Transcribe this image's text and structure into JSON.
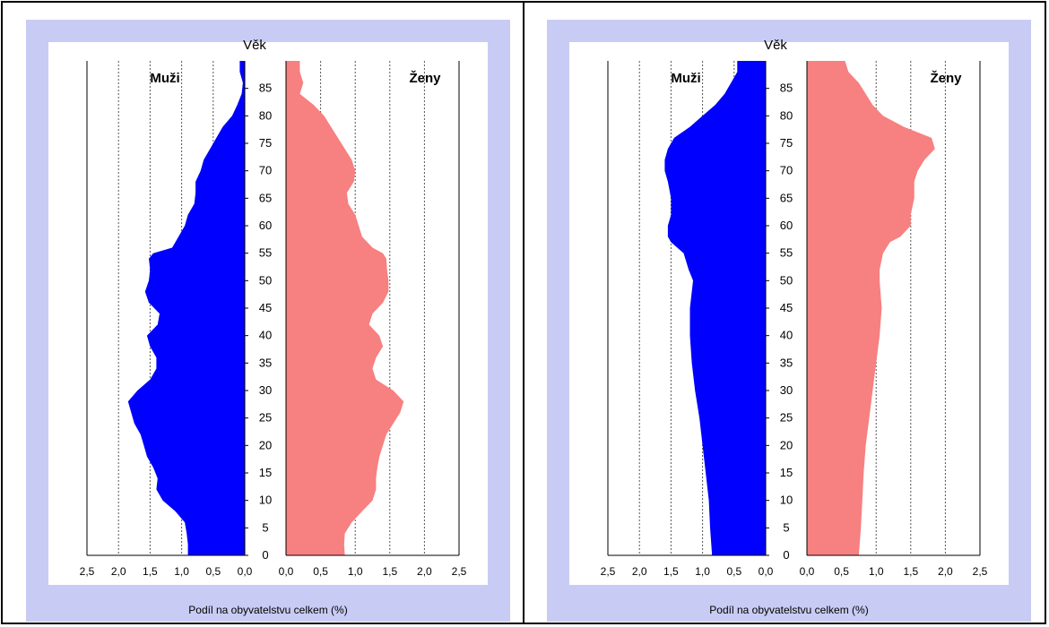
{
  "colors": {
    "male": "#0000ff",
    "female": "#f78080",
    "panel_bg": "#c8ccf4",
    "plot_bg": "#ffffff"
  },
  "chart_data": [
    {
      "type": "area",
      "title": "Věk",
      "xlabel": "Podíl na obyvatelstvu celkem (%)",
      "ylabel": "Věk",
      "left_label": "Muži",
      "right_label": "Ženy",
      "xlim": [
        0,
        2.5
      ],
      "ylim": [
        0,
        90
      ],
      "x_ticks": [
        "2,5",
        "2,0",
        "1,5",
        "1,0",
        "0,5",
        "0,0",
        "0,0",
        "0,5",
        "1,0",
        "1,5",
        "2,0",
        "2,5"
      ],
      "y_ticks": [
        "0",
        "5",
        "10",
        "15",
        "20",
        "25",
        "30",
        "35",
        "40",
        "45",
        "50",
        "55",
        "60",
        "65",
        "70",
        "75",
        "80",
        "85"
      ],
      "grid": "vertical-dotted",
      "series": [
        {
          "name": "Muži",
          "age": [
            0,
            2,
            4,
            6,
            8,
            10,
            12,
            14,
            16,
            18,
            20,
            22,
            24,
            26,
            28,
            30,
            32,
            34,
            36,
            38,
            40,
            42,
            44,
            46,
            48,
            50,
            52,
            54,
            55,
            56,
            58,
            60,
            62,
            64,
            66,
            68,
            70,
            72,
            74,
            76,
            78,
            80,
            82,
            84,
            86,
            88,
            90
          ],
          "values": [
            0.9,
            0.9,
            0.92,
            0.95,
            1.1,
            1.3,
            1.4,
            1.38,
            1.45,
            1.55,
            1.6,
            1.65,
            1.75,
            1.8,
            1.85,
            1.7,
            1.5,
            1.4,
            1.4,
            1.5,
            1.55,
            1.38,
            1.35,
            1.52,
            1.58,
            1.52,
            1.5,
            1.52,
            1.45,
            1.15,
            1.05,
            0.95,
            0.9,
            0.8,
            0.78,
            0.78,
            0.7,
            0.65,
            0.55,
            0.45,
            0.35,
            0.2,
            0.12,
            0.05,
            0.03,
            0.08,
            0.08
          ]
        },
        {
          "name": "Ženy",
          "age": [
            0,
            2,
            4,
            6,
            8,
            10,
            12,
            14,
            16,
            18,
            20,
            22,
            24,
            26,
            28,
            30,
            32,
            34,
            36,
            38,
            40,
            42,
            44,
            46,
            48,
            50,
            52,
            54,
            55,
            56,
            58,
            60,
            62,
            64,
            66,
            68,
            70,
            72,
            74,
            76,
            78,
            80,
            82,
            84,
            86,
            88,
            90
          ],
          "values": [
            0.85,
            0.84,
            0.85,
            0.95,
            1.1,
            1.25,
            1.3,
            1.3,
            1.32,
            1.35,
            1.4,
            1.45,
            1.55,
            1.65,
            1.7,
            1.55,
            1.3,
            1.25,
            1.3,
            1.4,
            1.35,
            1.2,
            1.25,
            1.4,
            1.48,
            1.48,
            1.46,
            1.45,
            1.4,
            1.25,
            1.1,
            1.05,
            1.0,
            0.9,
            0.88,
            0.98,
            1.0,
            0.95,
            0.85,
            0.75,
            0.65,
            0.55,
            0.4,
            0.2,
            0.25,
            0.2,
            0.2
          ]
        }
      ]
    },
    {
      "type": "area",
      "title": "Věk",
      "xlabel": "Podíl na obyvatelstvu celkem (%)",
      "ylabel": "Věk",
      "left_label": "Muži",
      "right_label": "Ženy",
      "xlim": [
        0,
        2.5
      ],
      "ylim": [
        0,
        90
      ],
      "x_ticks": [
        "2,5",
        "2,0",
        "1,5",
        "1,0",
        "0,5",
        "0,0",
        "0,0",
        "0,5",
        "1,0",
        "1,5",
        "2,0",
        "2,5"
      ],
      "y_ticks": [
        "0",
        "5",
        "10",
        "15",
        "20",
        "25",
        "30",
        "35",
        "40",
        "45",
        "50",
        "55",
        "60",
        "65",
        "70",
        "75",
        "80",
        "85"
      ],
      "grid": "vertical-dotted",
      "series": [
        {
          "name": "Muži",
          "age": [
            0,
            5,
            10,
            15,
            20,
            25,
            30,
            35,
            40,
            45,
            50,
            52,
            55,
            57,
            58,
            60,
            62,
            65,
            68,
            70,
            72,
            74,
            76,
            78,
            80,
            82,
            84,
            86,
            88,
            90
          ],
          "values": [
            0.85,
            0.88,
            0.9,
            0.95,
            1.0,
            1.05,
            1.12,
            1.17,
            1.2,
            1.2,
            1.15,
            1.22,
            1.3,
            1.5,
            1.55,
            1.55,
            1.5,
            1.5,
            1.55,
            1.6,
            1.6,
            1.55,
            1.45,
            1.2,
            1.0,
            0.8,
            0.65,
            0.55,
            0.45,
            0.45
          ]
        },
        {
          "name": "Ženy",
          "age": [
            0,
            5,
            10,
            15,
            20,
            25,
            30,
            35,
            40,
            45,
            50,
            52,
            55,
            57,
            58,
            60,
            62,
            65,
            68,
            70,
            72,
            74,
            76,
            78,
            80,
            82,
            84,
            86,
            88,
            90
          ],
          "values": [
            0.75,
            0.78,
            0.8,
            0.82,
            0.85,
            0.9,
            0.95,
            1.0,
            1.05,
            1.08,
            1.05,
            1.05,
            1.1,
            1.2,
            1.35,
            1.5,
            1.5,
            1.55,
            1.55,
            1.6,
            1.7,
            1.85,
            1.8,
            1.4,
            1.1,
            0.95,
            0.85,
            0.75,
            0.6,
            0.55
          ]
        }
      ]
    }
  ]
}
